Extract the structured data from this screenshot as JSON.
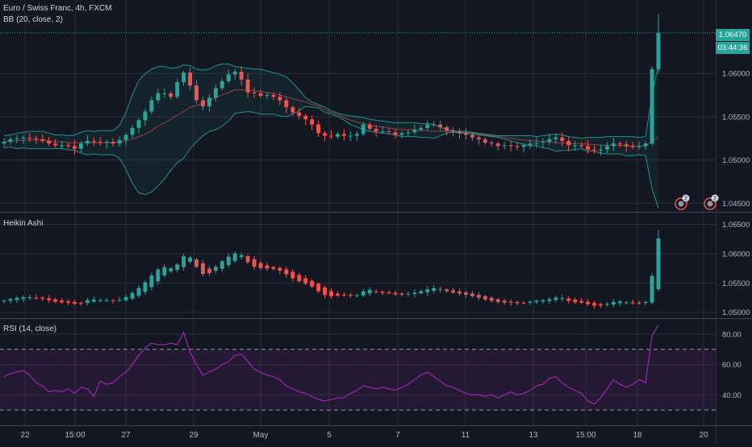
{
  "symbol_title": "Euro / Swiss Franc, 4h, FXCM",
  "bb_label": "BB (20, close, 2)",
  "ha_label": "Heikin Ashi",
  "rsi_label": "RSI (14, close)",
  "current_price": "1.06470",
  "countdown": "03:44:36",
  "event_badges": [
    "2",
    "2"
  ],
  "colors": {
    "background": "#131722",
    "up": "#26a69a",
    "down": "#ef5350",
    "rsi": "#9c27b0",
    "grid": "#2a2e39"
  },
  "x_ticks": [
    "22",
    "15:00",
    "27",
    "29",
    "May",
    "5",
    "7",
    "11",
    "13",
    "15:00",
    "18",
    "20"
  ],
  "chart_data": [
    {
      "type": "candlestick",
      "title": "Euro / Swiss Franc, 4h, FXCM",
      "overlay": "BB (20, close, 2)",
      "y_ticks": [
        "1.06000",
        "1.05500",
        "1.05000",
        "1.04500"
      ],
      "ylim": [
        1.044,
        1.0685
      ],
      "series": [
        {
          "name": "close",
          "values": [
            1.0521,
            1.0524,
            1.0525,
            1.0526,
            1.0525,
            1.0524,
            1.0522,
            1.0519,
            1.0517,
            1.0517,
            1.0516,
            1.0513,
            1.0519,
            1.0522,
            1.0521,
            1.052,
            1.0521,
            1.0519,
            1.0523,
            1.0529,
            1.0537,
            1.0546,
            1.0556,
            1.0569,
            1.0577,
            1.0577,
            1.0573,
            1.059,
            1.0601,
            1.0586,
            1.0569,
            1.0562,
            1.0572,
            1.0583,
            1.0591,
            1.0599,
            1.0602,
            1.0593,
            1.0578,
            1.0577,
            1.0574,
            1.0575,
            1.0573,
            1.0569,
            1.0561,
            1.0555,
            1.0551,
            1.0547,
            1.0541,
            1.0531,
            1.0528,
            1.0527,
            1.053,
            1.0528,
            1.0528,
            1.053,
            1.0541,
            1.0536,
            1.0533,
            1.0533,
            1.0532,
            1.0529,
            1.0531,
            1.0532,
            1.0535,
            1.0537,
            1.0541,
            1.0541,
            1.0538,
            1.0534,
            1.0533,
            1.0531,
            1.0529,
            1.0526,
            1.0524,
            1.052,
            1.0519,
            1.0516,
            1.0517,
            1.0516,
            1.0515,
            1.0517,
            1.0519,
            1.052,
            1.0521,
            1.0524,
            1.0526,
            1.0522,
            1.0517,
            1.0517,
            1.0516,
            1.0512,
            1.0511,
            1.0512,
            1.0516,
            1.0519,
            1.0518,
            1.0516,
            1.0515,
            1.0516,
            1.0519,
            1.0605,
            1.0647
          ]
        },
        {
          "name": "bb_upper",
          "values": [
            1.0528,
            1.0529,
            1.0531,
            1.0532,
            1.0533,
            1.0533,
            1.0533,
            1.0531,
            1.0529,
            1.0529,
            1.0528,
            1.0529,
            1.0532,
            1.0534,
            1.0533,
            1.0534,
            1.0534,
            1.0534,
            1.054,
            1.0555,
            1.0575,
            1.0592,
            1.06,
            1.0605,
            1.0608,
            1.0608,
            1.0606,
            1.0607,
            1.061,
            1.0609,
            1.0605,
            1.0604,
            1.0605,
            1.0609,
            1.0611,
            1.0611,
            1.0608,
            1.0607,
            1.0606,
            1.0605,
            1.0605,
            1.0603,
            1.0601,
            1.0599,
            1.0596,
            1.0589,
            1.0581,
            1.0572,
            1.0567,
            1.0564,
            1.0561,
            1.0557,
            1.0554,
            1.0552,
            1.0551,
            1.055,
            1.0549,
            1.0547,
            1.0546,
            1.0545,
            1.0544,
            1.0543,
            1.0543,
            1.0543,
            1.0543,
            1.0542,
            1.0542,
            1.0541,
            1.0538,
            1.0535,
            1.0534,
            1.0533,
            1.0533,
            1.0532,
            1.0531,
            1.053,
            1.0529,
            1.0528,
            1.0528,
            1.0528,
            1.0528,
            1.0528,
            1.0528,
            1.0527,
            1.0528,
            1.0529,
            1.053,
            1.0529,
            1.0527,
            1.0526,
            1.0525,
            1.0526,
            1.0526,
            1.0526,
            1.0527,
            1.0527,
            1.0527,
            1.0527,
            1.0527,
            1.0526,
            1.0527,
            1.0575,
            1.061
          ]
        },
        {
          "name": "bb_middle",
          "values": [
            1.0521,
            1.0522,
            1.0522,
            1.0523,
            1.0523,
            1.0523,
            1.0523,
            1.0522,
            1.0521,
            1.0521,
            1.052,
            1.052,
            1.052,
            1.052,
            1.052,
            1.052,
            1.052,
            1.052,
            1.0521,
            1.0522,
            1.0524,
            1.0527,
            1.053,
            1.0534,
            1.0539,
            1.0543,
            1.0547,
            1.0552,
            1.0556,
            1.0561,
            1.0563,
            1.0566,
            1.0569,
            1.0572,
            1.0575,
            1.0578,
            1.0581,
            1.0581,
            1.0581,
            1.058,
            1.0579,
            1.0578,
            1.0577,
            1.0575,
            1.0573,
            1.0571,
            1.0569,
            1.0567,
            1.0564,
            1.0562,
            1.0558,
            1.0555,
            1.0552,
            1.0549,
            1.0546,
            1.0544,
            1.0542,
            1.054,
            1.0539,
            1.0538,
            1.0537,
            1.0536,
            1.0535,
            1.0535,
            1.0535,
            1.0534,
            1.0534,
            1.0533,
            1.0533,
            1.0533,
            1.0533,
            1.0532,
            1.0532,
            1.0531,
            1.053,
            1.0529,
            1.0528,
            1.0527,
            1.0526,
            1.0525,
            1.0524,
            1.0523,
            1.0522,
            1.0522,
            1.0521,
            1.0521,
            1.052,
            1.052,
            1.0519,
            1.0519,
            1.0519,
            1.0518,
            1.0518,
            1.0517,
            1.0517,
            1.0517,
            1.0517,
            1.0516,
            1.0516,
            1.0516,
            1.0516,
            1.0521,
            1.0527
          ]
        },
        {
          "name": "bb_lower",
          "values": [
            1.0514,
            1.0515,
            1.0513,
            1.0514,
            1.0513,
            1.0513,
            1.0513,
            1.0513,
            1.0513,
            1.0513,
            1.0512,
            1.0511,
            1.0508,
            1.0506,
            1.0507,
            1.0506,
            1.0506,
            1.0506,
            1.0502,
            1.0489,
            1.0473,
            1.0462,
            1.046,
            1.0463,
            1.047,
            1.0478,
            1.0488,
            1.0497,
            1.0502,
            1.0513,
            1.0521,
            1.0528,
            1.0533,
            1.0535,
            1.0539,
            1.0545,
            1.0554,
            1.0555,
            1.0556,
            1.0555,
            1.0553,
            1.0553,
            1.0553,
            1.0551,
            1.055,
            1.0553,
            1.0557,
            1.0562,
            1.0561,
            1.056,
            1.0555,
            1.0553,
            1.055,
            1.0546,
            1.0541,
            1.0538,
            1.0535,
            1.0533,
            1.0532,
            1.0531,
            1.053,
            1.0529,
            1.0527,
            1.0527,
            1.0527,
            1.0526,
            1.0526,
            1.0525,
            1.0528,
            1.0531,
            1.0532,
            1.0531,
            1.0531,
            1.053,
            1.0529,
            1.0528,
            1.0527,
            1.0526,
            1.0524,
            1.0522,
            1.052,
            1.0518,
            1.0516,
            1.0517,
            1.0514,
            1.0513,
            1.051,
            1.0511,
            1.0511,
            1.0512,
            1.0513,
            1.051,
            1.051,
            1.0508,
            1.0507,
            1.0507,
            1.0507,
            1.0505,
            1.0505,
            1.0506,
            1.0505,
            1.0467,
            1.0444
          ]
        }
      ]
    },
    {
      "type": "candlestick",
      "title": "Heikin Ashi",
      "y_ticks": [
        "1.06500",
        "1.06000",
        "1.05500",
        "1.05000"
      ],
      "ylim": [
        1.049,
        1.067
      ]
    },
    {
      "type": "line",
      "title": "RSI (14, close)",
      "y_ticks": [
        "80.00",
        "60.00",
        "40.00"
      ],
      "ylim": [
        20,
        90
      ],
      "band": [
        30,
        70
      ],
      "series": [
        {
          "name": "rsi",
          "values": [
            52,
            54,
            55,
            56,
            53,
            48,
            46,
            42,
            43,
            42,
            44,
            41,
            45,
            44,
            39,
            49,
            47,
            48,
            52,
            55,
            60,
            66,
            71,
            74,
            73,
            73,
            74,
            73,
            81,
            68,
            60,
            53,
            55,
            57,
            60,
            62,
            66,
            67,
            62,
            57,
            55,
            53,
            52,
            50,
            46,
            44,
            42,
            41,
            39,
            37,
            36,
            37,
            38,
            38,
            41,
            43,
            46,
            45,
            44,
            45,
            44,
            43,
            45,
            47,
            50,
            53,
            55,
            52,
            49,
            46,
            45,
            43,
            41,
            40,
            40,
            39,
            40,
            38,
            40,
            42,
            40,
            41,
            43,
            46,
            47,
            51,
            52,
            48,
            45,
            43,
            41,
            36,
            34,
            38,
            44,
            50,
            47,
            45,
            47,
            50,
            48,
            79,
            86
          ]
        }
      ]
    }
  ]
}
